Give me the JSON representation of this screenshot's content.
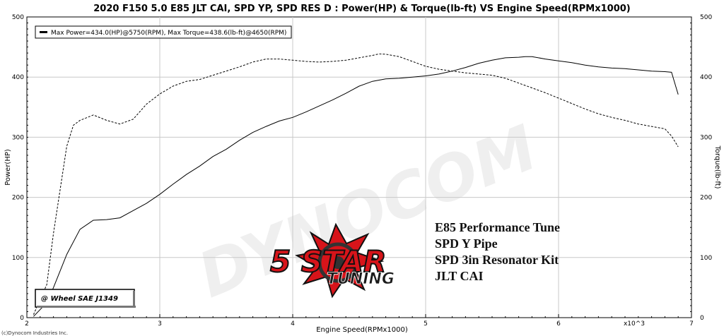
{
  "chart_data": {
    "type": "line",
    "title": "2020 F150 5.0 E85 JLT CAI, SPD YP, SPD RES D : Power(HP) & Torque(lb-ft) VS Engine Speed(RPMx1000)",
    "xlabel": "Engine Speed(RPMx1000)",
    "ylabel_left": "Power(HP)",
    "ylabel_right": "Torque(lb-ft)",
    "x_multiplier": "x10^3",
    "xlim": [
      2,
      7
    ],
    "ylim": [
      0,
      500
    ],
    "x_ticks": [
      "2",
      "3",
      "4",
      "5",
      "6",
      "7"
    ],
    "y_ticks": [
      "0",
      "100",
      "200",
      "300",
      "400",
      "500"
    ],
    "grid": true,
    "legend": "Max Power=434.0(HP)@5750(RPM), Max Torque=438.6(lb-ft)@4650(RPM)",
    "series": [
      {
        "name": "Power",
        "style": "solid",
        "color": "#000000",
        "x": [
          2.05,
          2.15,
          2.2,
          2.3,
          2.4,
          2.5,
          2.6,
          2.7,
          2.8,
          2.9,
          3.0,
          3.1,
          3.2,
          3.3,
          3.4,
          3.5,
          3.6,
          3.7,
          3.8,
          3.9,
          4.0,
          4.1,
          4.2,
          4.3,
          4.4,
          4.5,
          4.6,
          4.7,
          4.8,
          4.9,
          5.0,
          5.1,
          5.2,
          5.3,
          5.4,
          5.5,
          5.6,
          5.7,
          5.75,
          5.8,
          5.9,
          6.0,
          6.1,
          6.2,
          6.3,
          6.4,
          6.5,
          6.6,
          6.7,
          6.8,
          6.85,
          6.9
        ],
        "values": [
          2,
          25,
          50,
          105,
          147,
          162,
          163,
          166,
          178,
          190,
          205,
          222,
          238,
          252,
          268,
          280,
          295,
          308,
          318,
          327,
          333,
          342,
          352,
          362,
          373,
          385,
          393,
          397,
          398,
          400,
          402,
          405,
          410,
          416,
          423,
          428,
          432,
          433,
          434,
          434,
          430,
          427,
          424,
          420,
          417,
          415,
          414,
          412,
          410,
          409,
          408,
          371
        ]
      },
      {
        "name": "Torque",
        "style": "dashed",
        "color": "#000000",
        "x": [
          2.05,
          2.15,
          2.2,
          2.3,
          2.35,
          2.4,
          2.5,
          2.6,
          2.7,
          2.8,
          2.9,
          3.0,
          3.1,
          3.2,
          3.3,
          3.4,
          3.5,
          3.6,
          3.7,
          3.8,
          3.9,
          4.0,
          4.1,
          4.2,
          4.3,
          4.4,
          4.5,
          4.6,
          4.65,
          4.7,
          4.8,
          4.9,
          5.0,
          5.1,
          5.2,
          5.3,
          5.4,
          5.5,
          5.6,
          5.7,
          5.8,
          5.9,
          6.0,
          6.1,
          6.2,
          6.3,
          6.4,
          6.5,
          6.6,
          6.7,
          6.8,
          6.85,
          6.9
        ],
        "values": [
          5,
          55,
          140,
          285,
          320,
          328,
          337,
          328,
          322,
          330,
          355,
          372,
          385,
          393,
          396,
          403,
          410,
          417,
          425,
          430,
          430,
          428,
          426,
          425,
          426,
          428,
          432,
          436,
          438.6,
          438,
          434,
          426,
          418,
          413,
          410,
          407,
          405,
          403,
          398,
          390,
          382,
          374,
          365,
          356,
          347,
          339,
          333,
          328,
          322,
          318,
          314,
          302,
          284
        ]
      }
    ]
  },
  "annotations": {
    "badge": "@ Wheel SAE J1349",
    "notes": [
      "E85 Performance Tune",
      "SPD Y Pipe",
      "SPD 3in Resonator Kit",
      "JLT CAI"
    ],
    "watermark": "DYNOCOM",
    "logo_line1": "5 STAR",
    "logo_line2": "TUNING",
    "copyright": "(c)Dynocom Industries Inc."
  },
  "colors": {
    "plot_bg": "#ffffff",
    "grid": "#c8c8c8",
    "axis": "#000000",
    "logo_red": "#d7141a",
    "logo_dark": "#1b1b1b"
  }
}
